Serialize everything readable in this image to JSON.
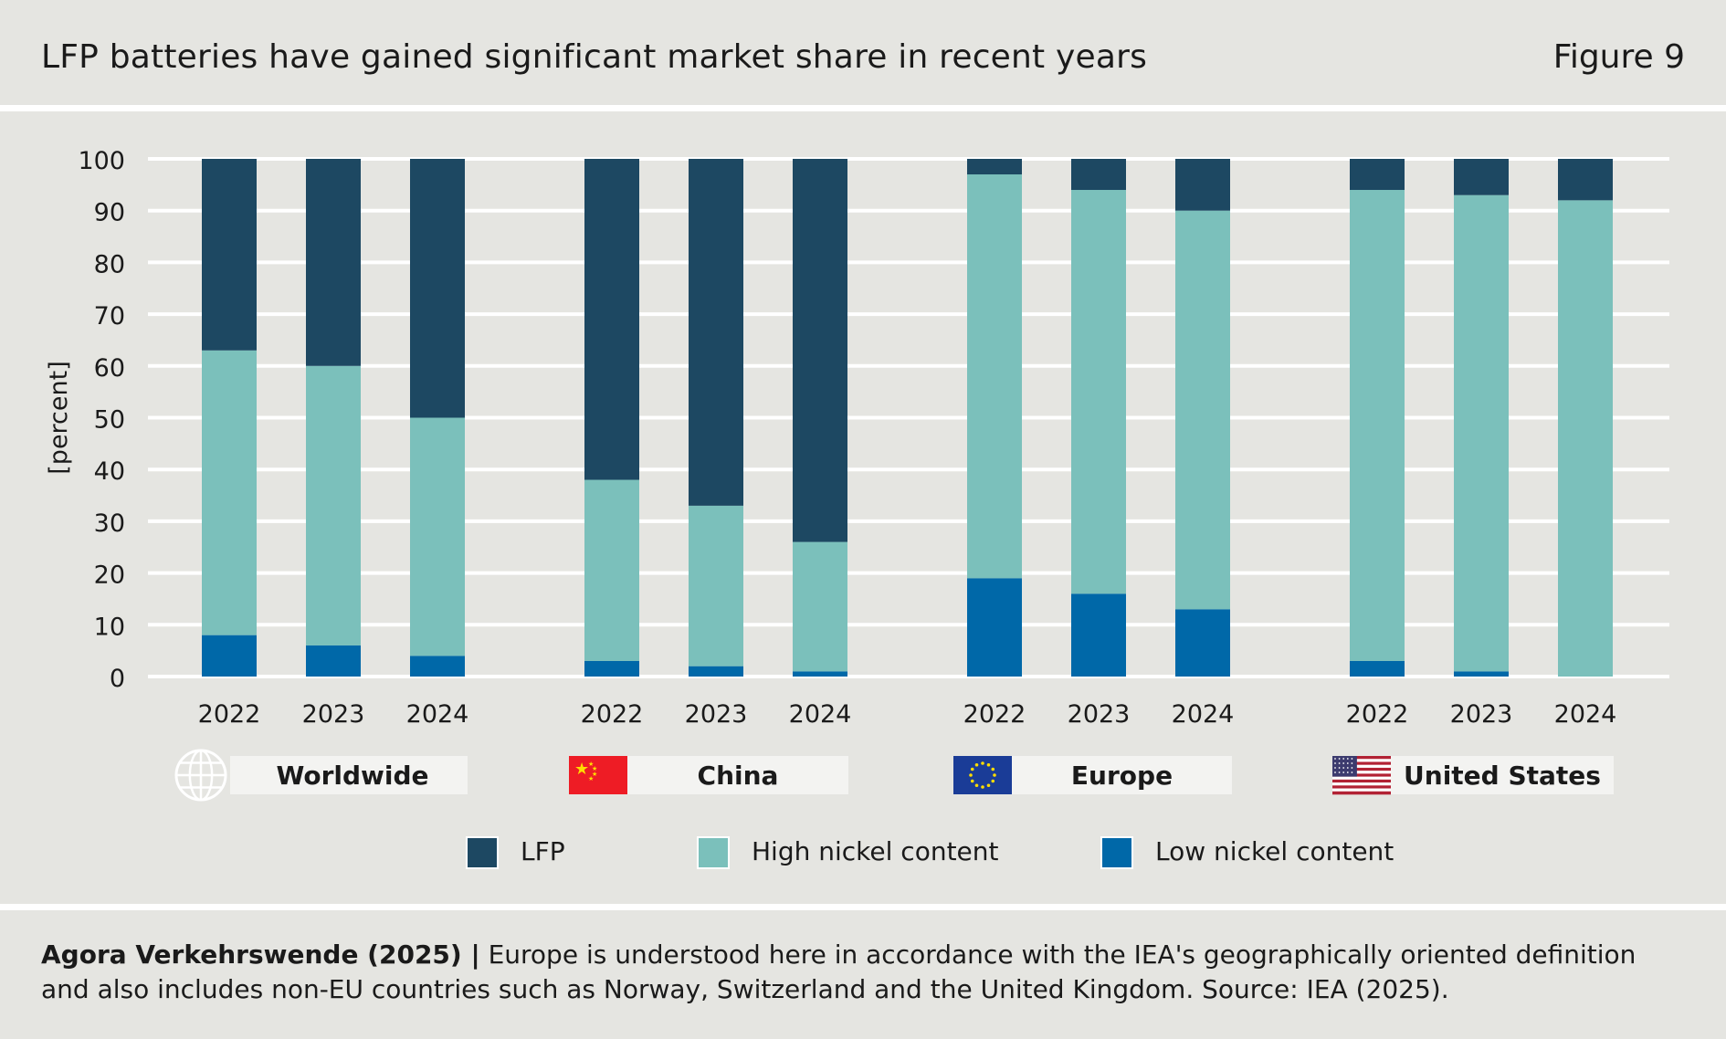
{
  "header": {
    "title": "LFP batteries have gained significant market share in recent years",
    "figure_label": "Figure 9"
  },
  "footer": {
    "source": "Agora Verkehrswende (2025) |",
    "note": " Europe is understood here in accordance with the IEA's geographically oriented definition and also includes non-EU countries such as Norway, Switzerland and the United Kingdom. Source: IEA (2025)."
  },
  "colors": {
    "lfp": "#1d4862",
    "high_nickel": "#7bc0bb",
    "low_nickel": "#0068a8",
    "grid": "#ffffff",
    "label_box": "#f3f3f1"
  },
  "chart_data": {
    "type": "bar",
    "stacked": true,
    "ylabel": "[percent]",
    "ylim": [
      0,
      100
    ],
    "yticks": [
      0,
      10,
      20,
      30,
      40,
      50,
      60,
      70,
      80,
      90,
      100
    ],
    "grid": true,
    "legend_position": "bottom",
    "groups": [
      {
        "name": "Worldwide",
        "icon": "globe-icon",
        "categories": [
          "2022",
          "2023",
          "2024"
        ]
      },
      {
        "name": "China",
        "icon": "china-flag-icon",
        "categories": [
          "2022",
          "2023",
          "2024"
        ]
      },
      {
        "name": "Europe",
        "icon": "eu-flag-icon",
        "categories": [
          "2022",
          "2023",
          "2024"
        ]
      },
      {
        "name": "United States",
        "icon": "us-flag-icon",
        "categories": [
          "2022",
          "2023",
          "2024"
        ]
      }
    ],
    "series": [
      {
        "name": "Low nickel content",
        "key": "low_nickel",
        "values": [
          [
            8,
            6,
            4
          ],
          [
            3,
            2,
            1
          ],
          [
            19,
            16,
            13
          ],
          [
            3,
            1,
            0
          ]
        ]
      },
      {
        "name": "High nickel content",
        "key": "high_nickel",
        "values": [
          [
            55,
            54,
            46
          ],
          [
            35,
            31,
            25
          ],
          [
            78,
            78,
            77
          ],
          [
            91,
            92,
            92
          ]
        ]
      },
      {
        "name": "LFP",
        "key": "lfp",
        "values": [
          [
            37,
            40,
            50
          ],
          [
            62,
            67,
            74
          ],
          [
            3,
            6,
            10
          ],
          [
            6,
            7,
            8
          ]
        ]
      }
    ],
    "legend": [
      {
        "name": "LFP",
        "key": "lfp"
      },
      {
        "name": "High nickel content",
        "key": "high_nickel"
      },
      {
        "name": "Low nickel content",
        "key": "low_nickel"
      }
    ]
  }
}
